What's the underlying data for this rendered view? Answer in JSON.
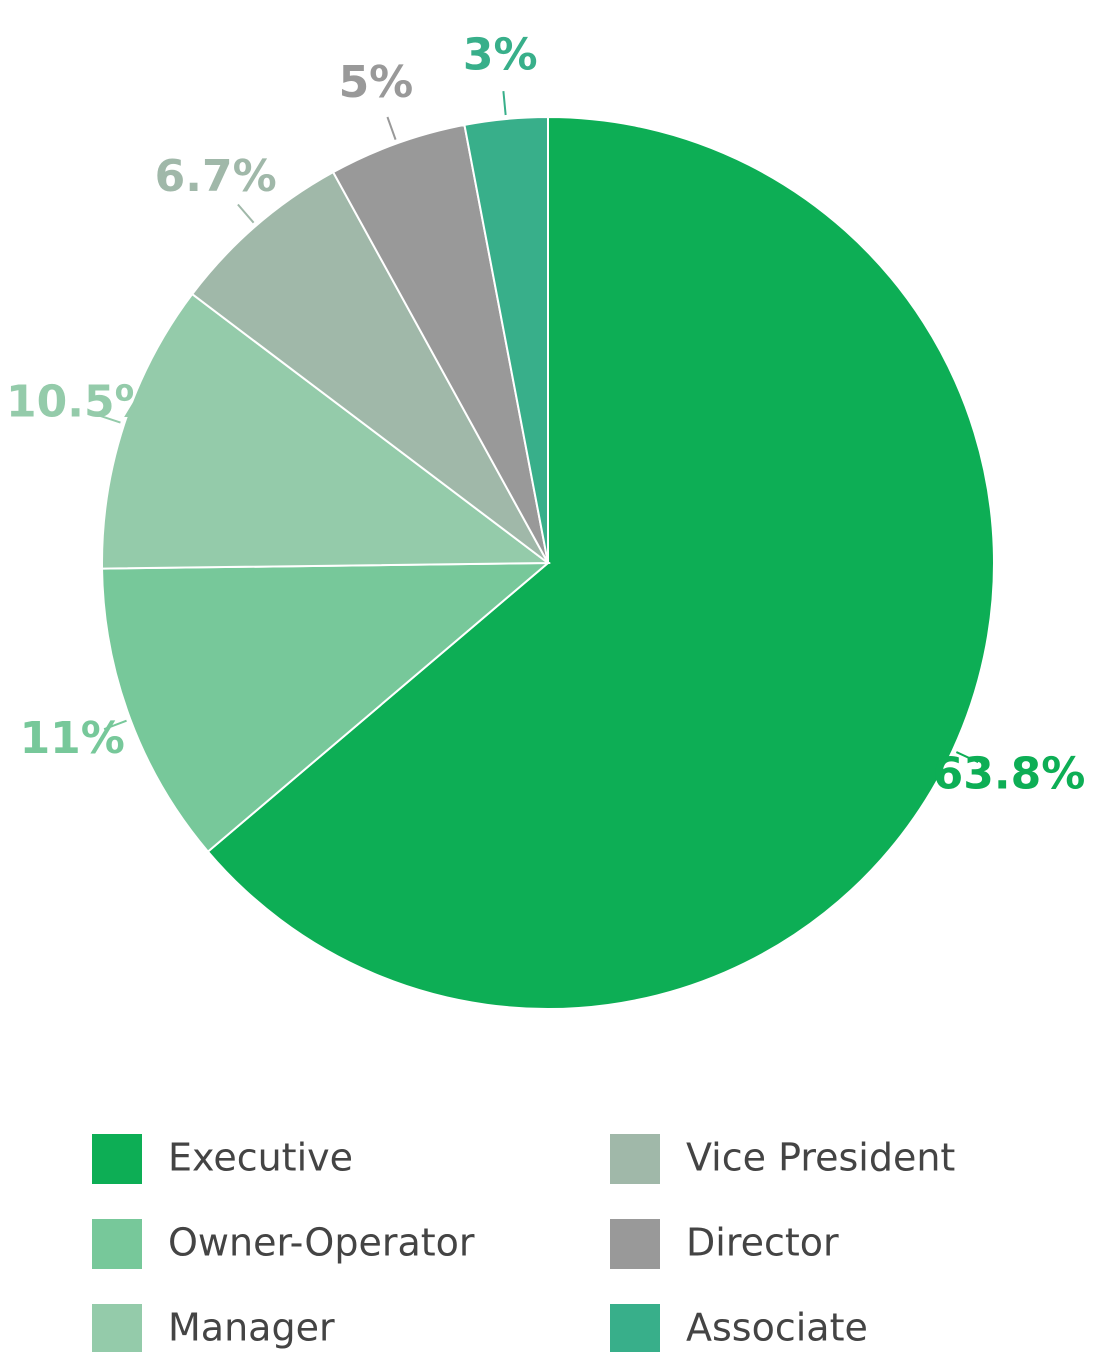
{
  "chart_data": {
    "type": "pie",
    "categories": [
      "Executive",
      "Owner-Operator",
      "Manager",
      "Vice President",
      "Director",
      "Associate"
    ],
    "values": [
      63.8,
      11,
      10.5,
      6.7,
      5,
      3
    ],
    "value_labels": [
      "63.8%",
      "11%",
      "10.5%",
      "6.7%",
      "5%",
      "3%"
    ],
    "colors": [
      "#0dae55",
      "#77c89a",
      "#94cbaa",
      "#a0b8a9",
      "#999999",
      "#38af8a"
    ],
    "legend": "bottom"
  }
}
